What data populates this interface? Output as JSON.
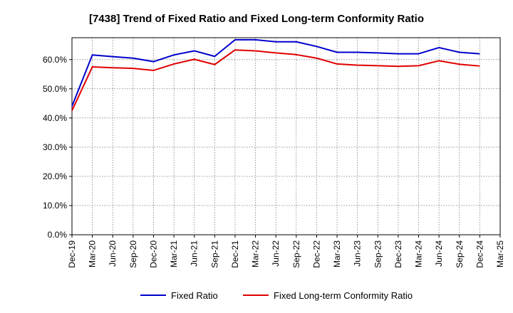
{
  "chart_data": {
    "type": "line",
    "title": "[7438]  Trend of Fixed Ratio and Fixed Long-term Conformity Ratio",
    "xlabel": "",
    "ylabel": "",
    "x_tick_labels": [
      "Dec-19",
      "Mar-20",
      "Jun-20",
      "Sep-20",
      "Dec-20",
      "Mar-21",
      "Jun-21",
      "Sep-21",
      "Dec-21",
      "Mar-22",
      "Jun-22",
      "Sep-22",
      "Dec-22",
      "Mar-23",
      "Jun-23",
      "Sep-23",
      "Dec-23",
      "Mar-24",
      "Jun-24",
      "Sep-24",
      "Dec-24",
      "Mar-25"
    ],
    "x": [
      "Dec-19",
      "Mar-20",
      "Jun-20",
      "Sep-20",
      "Dec-20",
      "Mar-21",
      "Jun-21",
      "Sep-21",
      "Dec-21",
      "Mar-22",
      "Jun-22",
      "Sep-22",
      "Dec-22",
      "Mar-23",
      "Jun-23",
      "Sep-23",
      "Dec-23",
      "Mar-24",
      "Jun-24",
      "Sep-24",
      "Dec-24"
    ],
    "y_ticks": [
      0,
      10,
      20,
      30,
      40,
      50,
      60
    ],
    "y_tick_labels": [
      "0.0%",
      "10.0%",
      "20.0%",
      "30.0%",
      "40.0%",
      "50.0%",
      "60.0%"
    ],
    "ylim": [
      0,
      67.5
    ],
    "grid": true,
    "legend_position": "bottom",
    "series": [
      {
        "name": "Fixed Ratio",
        "color": "#0000cc",
        "values": [
          44.0,
          61.6,
          61.0,
          60.5,
          59.3,
          61.6,
          63.0,
          61.1,
          66.8,
          66.8,
          66.1,
          66.1,
          64.5,
          62.5,
          62.5,
          62.3,
          62.0,
          62.0,
          64.1,
          62.5,
          62.0
        ]
      },
      {
        "name": "Fixed Long-term Conformity Ratio",
        "color": "#e00000",
        "values": [
          42.5,
          57.5,
          57.2,
          57.0,
          56.3,
          58.5,
          60.1,
          58.3,
          63.3,
          63.0,
          62.3,
          61.7,
          60.5,
          58.5,
          58.1,
          57.9,
          57.7,
          57.9,
          59.6,
          58.4,
          57.8
        ]
      }
    ]
  }
}
